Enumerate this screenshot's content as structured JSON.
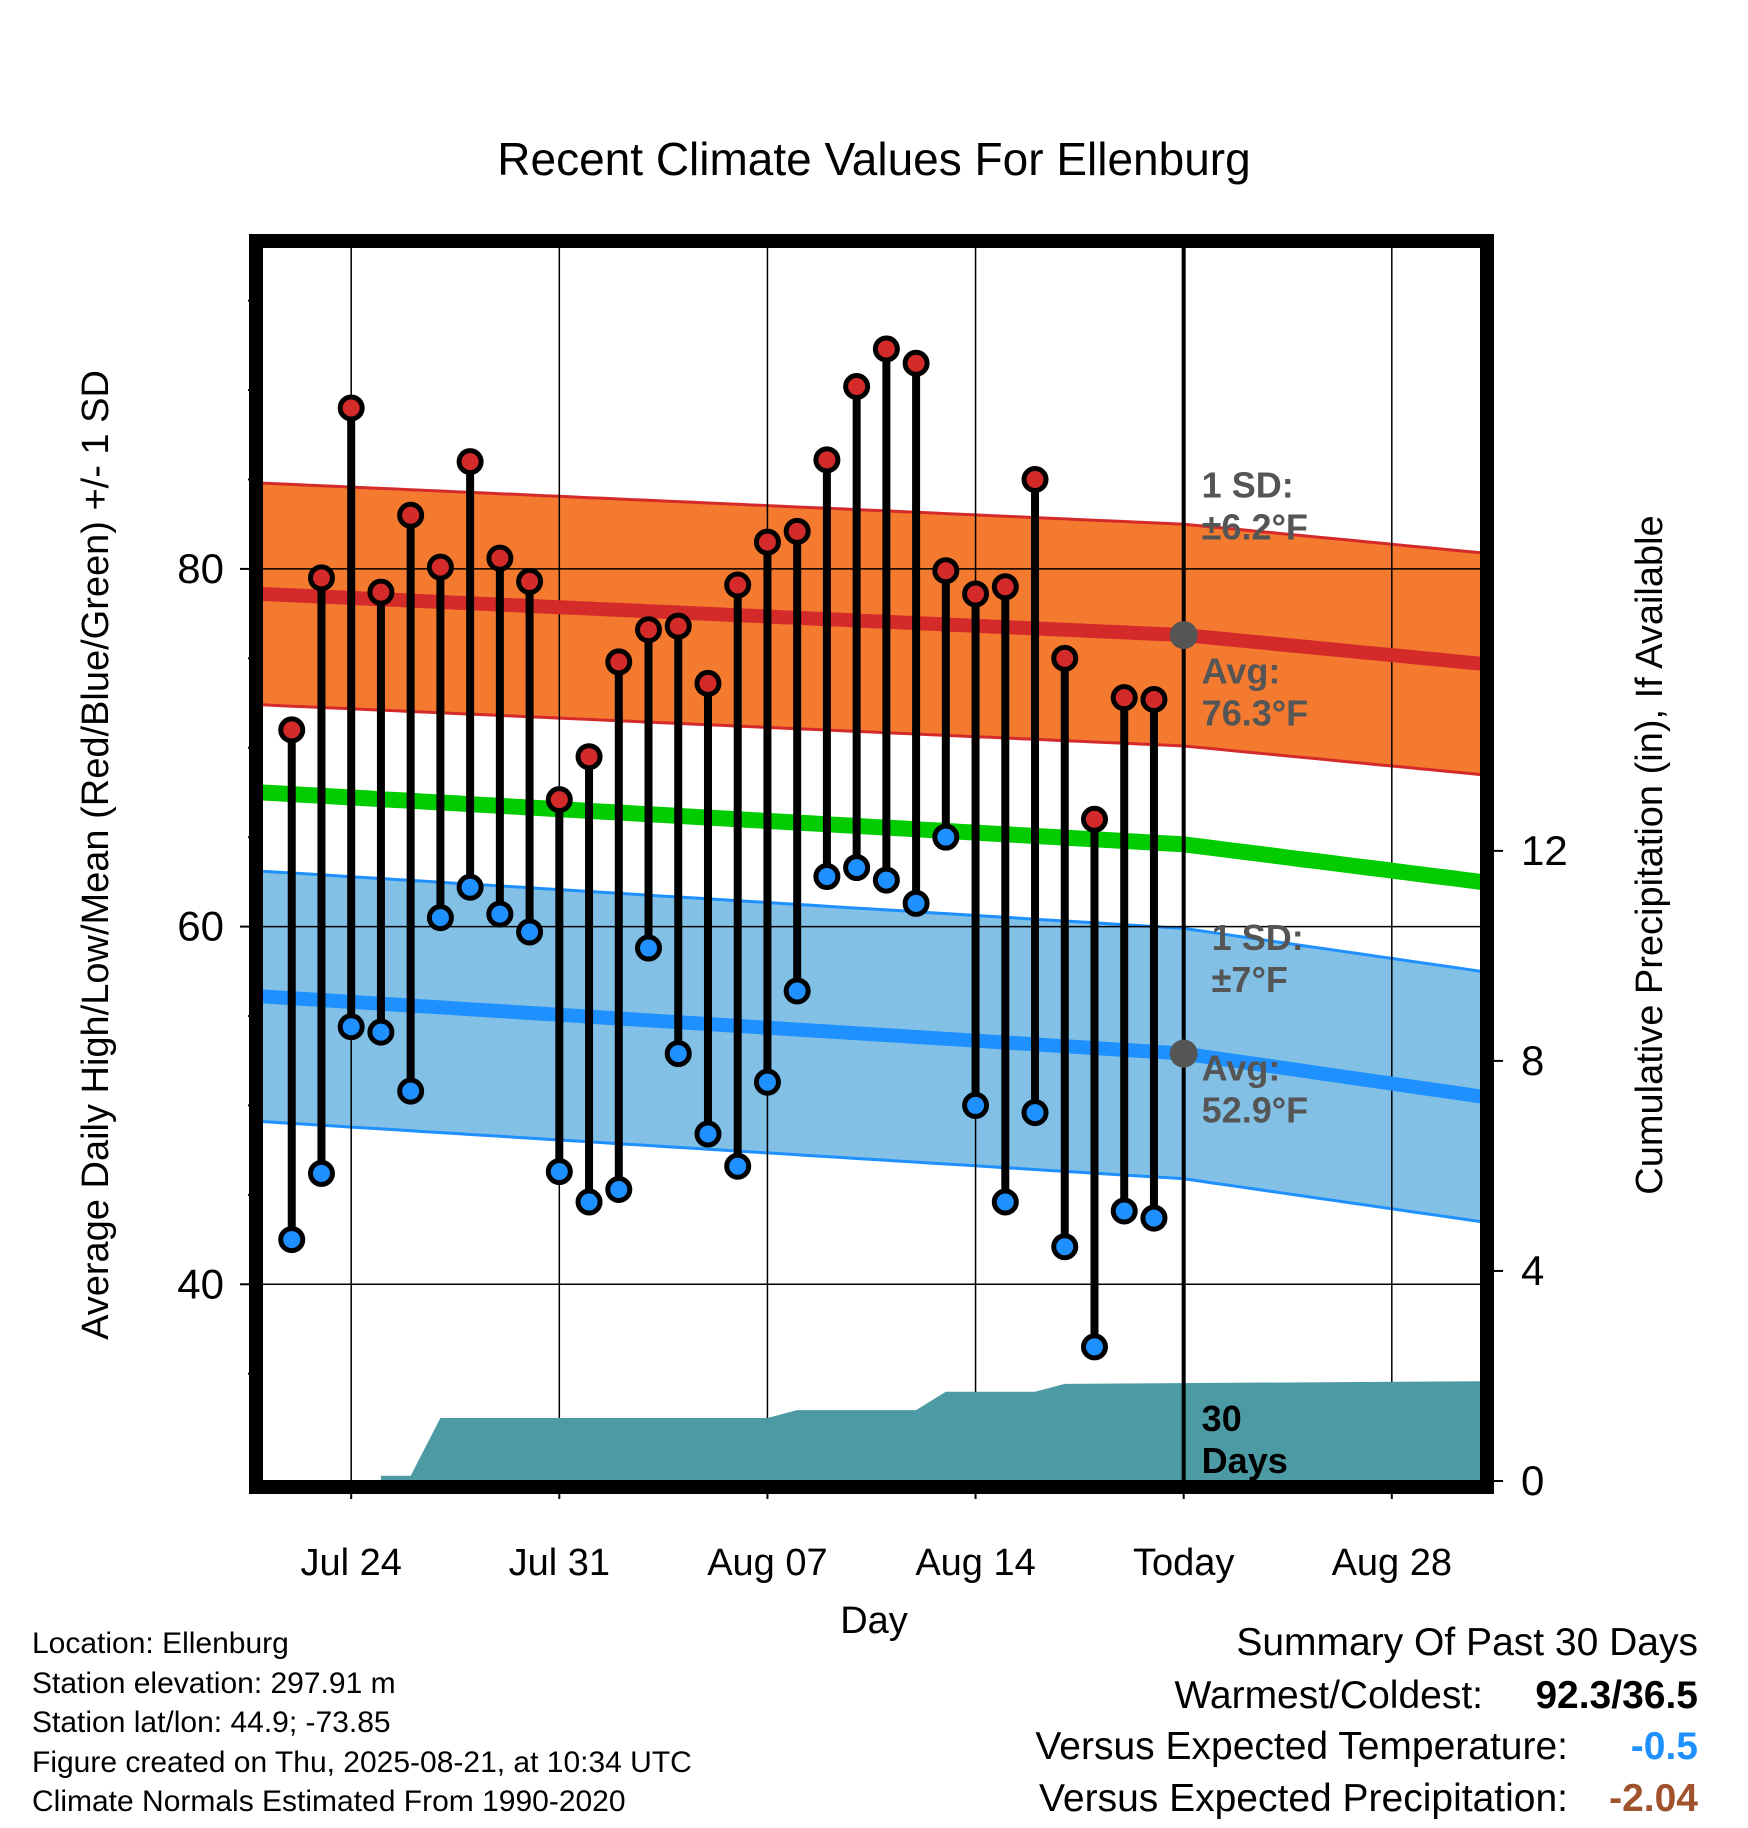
{
  "chart_data": {
    "type": "line",
    "title": "Recent Climate Values For Ellenburg",
    "xlabel": "Day",
    "ylabel": "Average Daily High/Low/Mean (Red/Blue/Green) +/- 1 SD",
    "y2label": "Cumulative Precipitation (in), If Available",
    "x_range": [
      "2025-07-21",
      "2025-08-31"
    ],
    "ylim": [
      29,
      98
    ],
    "y2lim": [
      0,
      23.5
    ],
    "grid": true,
    "xticks": [
      {
        "date": "2025-07-24",
        "label": "Jul 24"
      },
      {
        "date": "2025-07-31",
        "label": "Jul 31"
      },
      {
        "date": "2025-08-07",
        "label": "Aug 07"
      },
      {
        "date": "2025-08-14",
        "label": "Aug 14"
      },
      {
        "date": "2025-08-21",
        "label": "Today"
      },
      {
        "date": "2025-08-28",
        "label": "Aug 28"
      }
    ],
    "yticks": [
      40,
      60,
      80
    ],
    "y2ticks": [
      0,
      4,
      8,
      12
    ],
    "today": "2025-08-21",
    "dates": [
      "2025-07-22",
      "2025-07-23",
      "2025-07-24",
      "2025-07-25",
      "2025-07-26",
      "2025-07-27",
      "2025-07-28",
      "2025-07-29",
      "2025-07-30",
      "2025-07-31",
      "2025-08-01",
      "2025-08-02",
      "2025-08-03",
      "2025-08-04",
      "2025-08-05",
      "2025-08-06",
      "2025-08-07",
      "2025-08-08",
      "2025-08-09",
      "2025-08-10",
      "2025-08-11",
      "2025-08-12",
      "2025-08-13",
      "2025-08-14",
      "2025-08-15",
      "2025-08-16",
      "2025-08-17",
      "2025-08-18",
      "2025-08-19",
      "2025-08-20"
    ],
    "series": [
      {
        "name": "High",
        "color": "#d42a2a",
        "values": [
          71,
          79.5,
          89,
          78.7,
          83,
          80.1,
          86,
          80.6,
          79.3,
          67.1,
          69.5,
          74.8,
          76.6,
          76.8,
          73.6,
          79.1,
          81.5,
          82.1,
          86.1,
          90.2,
          92.3,
          91.5,
          79.9,
          78.6,
          79,
          85,
          75,
          66,
          72.8,
          72.7
        ]
      },
      {
        "name": "Low",
        "color": "#1e90ff",
        "values": [
          42.5,
          46.2,
          54.4,
          54.1,
          50.8,
          60.5,
          62.2,
          60.7,
          59.7,
          46.3,
          44.6,
          45.3,
          58.8,
          52.9,
          48.4,
          46.6,
          51.3,
          56.4,
          62.8,
          63.3,
          62.6,
          61.3,
          65,
          50,
          44.6,
          49.6,
          42.1,
          36.5,
          44.1,
          43.7
        ]
      }
    ],
    "normals": {
      "high_avg": {
        "start": 78.6,
        "today": 76.3,
        "end": 74.7,
        "color": "#d42a2a"
      },
      "high_sd": 6.2,
      "low_avg": {
        "start": 56.1,
        "today": 52.9,
        "end": 50.5,
        "color": "#1e90ff"
      },
      "low_sd": 7,
      "mean_avg": {
        "start": 67.5,
        "today": 64.6,
        "end": 62.5,
        "color": "#00cc00"
      },
      "high_band_color": "#f47a30",
      "low_band_color": "#82c0e6"
    },
    "precip_cumulative": {
      "color": "#4b9aa4",
      "points": [
        {
          "date": "2025-07-21",
          "value": 0
        },
        {
          "date": "2025-07-25",
          "value": 0
        },
        {
          "date": "2025-07-25",
          "value": 0.1
        },
        {
          "date": "2025-07-26",
          "value": 0.1
        },
        {
          "date": "2025-07-27",
          "value": 1.2
        },
        {
          "date": "2025-08-07",
          "value": 1.2
        },
        {
          "date": "2025-08-08",
          "value": 1.35
        },
        {
          "date": "2025-08-12",
          "value": 1.35
        },
        {
          "date": "2025-08-13",
          "value": 1.7
        },
        {
          "date": "2025-08-16",
          "value": 1.7
        },
        {
          "date": "2025-08-17",
          "value": 1.85
        },
        {
          "date": "2025-08-31",
          "value": 1.9
        }
      ]
    },
    "annotations": {
      "high_sd_label": [
        "1 SD:",
        "±6.2°F"
      ],
      "high_avg_label": [
        "Avg:",
        "76.3°F"
      ],
      "low_sd_label": [
        "1 SD:",
        "±7°F"
      ],
      "low_avg_label": [
        "Avg:",
        "52.9°F"
      ],
      "precip_label": [
        "30",
        "Days"
      ],
      "annotation_color": "#555555"
    }
  },
  "info": {
    "location": "Location: Ellenburg",
    "elevation": "Station elevation: 297.91 m",
    "latlon": "Station lat/lon: 44.9; -73.85",
    "created": "Figure created on Thu, 2025-08-21, at 10:34 UTC",
    "normals": "Climate Normals Estimated From 1990-2020"
  },
  "summary": {
    "title": "Summary Of Past 30 Days",
    "warmest_label": "Warmest/Coldest:",
    "warmest_value": "92.3/36.5",
    "temp_label": "Versus Expected Temperature:",
    "temp_value": "-0.5",
    "temp_color": "#1e90ff",
    "precip_label": "Versus Expected Precipitation:",
    "precip_value": "-2.04",
    "precip_color": "#a0522d"
  }
}
